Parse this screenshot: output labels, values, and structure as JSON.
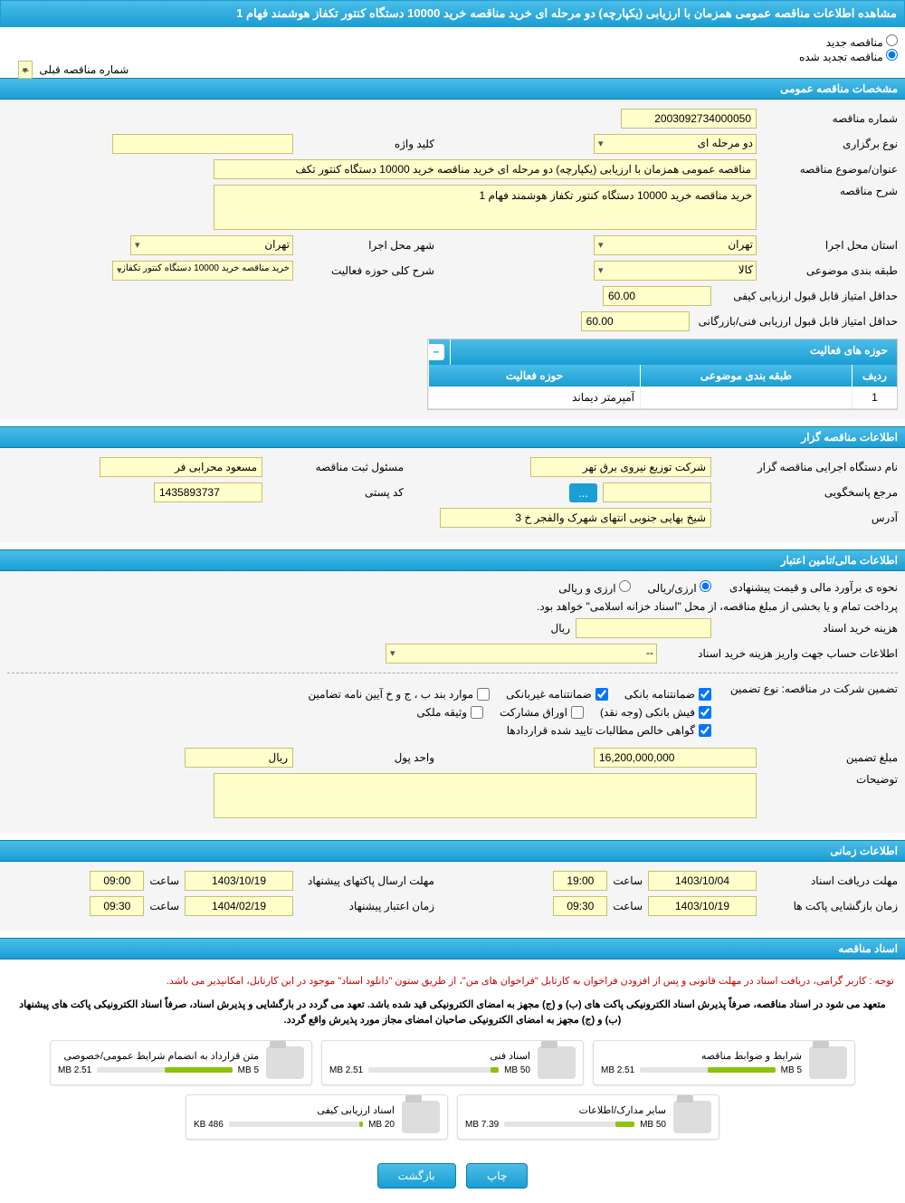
{
  "header": {
    "title": "مشاهده اطلاعات مناقصه عمومی همزمان با ارزیابی (یکپارچه) دو مرحله ای خرید مناقصه خرید 10000 دستگاه کنتور تکفاز هوشمند فهام 1"
  },
  "radios": {
    "new": "مناقصه جدید",
    "renewed": "مناقصه تجدید شده"
  },
  "prev_number": {
    "label": "شماره مناقصه قبلی",
    "value": "--"
  },
  "sections": {
    "general": "مشخصات مناقصه عمومی",
    "agent": "اطلاعات مناقصه گزار",
    "finance": "اطلاعات مالی/تامین اعتبار",
    "time": "اطلاعات زمانی",
    "docs": "اسناد مناقصه"
  },
  "general": {
    "number_label": "شماره مناقصه",
    "number": "2003092734000050",
    "type_label": "نوع برگزاری",
    "type": "دو مرحله ای",
    "keyword_label": "کلید واژه",
    "keyword": "",
    "subject_label": "عنوان/موضوع مناقصه",
    "subject": "مناقصه عمومی همزمان با ارزیابی (یکپارچه) دو مرحله ای خرید مناقصه خرید 10000 دستگاه کنتور تکف",
    "desc_label": "شرح مناقصه",
    "desc": "خرید مناقصه خرید 10000 دستگاه کنتور تکفاز هوشمند فهام 1",
    "province_label": "استان محل اجرا",
    "province": "تهران",
    "city_label": "شهر محل اجرا",
    "city": "تهران",
    "category_label": "طبقه بندی موضوعی",
    "category": "کالا",
    "activity_desc_label": "شرح کلی حوزه فعالیت",
    "activity_desc": "خرید مناقصه خرید 10000 دستگاه کنتور تکفاز",
    "min_quality_label": "حداقل امتیاز قابل قبول ارزیابی کیفی",
    "min_quality": "60.00",
    "min_tech_label": "حداقل امتیاز قابل قبول ارزیابی فنی/بازرگانی",
    "min_tech": "60.00"
  },
  "activity_table": {
    "title": "حوزه های فعالیت",
    "col1": "ردیف",
    "col2": "طبقه بندی موضوعی",
    "col3": "حوزه فعالیت",
    "row1_num": "1",
    "row1_cat": "",
    "row1_act": "آمپرمتر دیماند"
  },
  "agent": {
    "org_label": "نام دستگاه اجرایی مناقصه گزار",
    "org": "شرکت توزیع نیروی برق تهر",
    "responsible_label": "مسئول ثبت مناقصه",
    "responsible": "مسعود محرابی فر",
    "response_label": "مرجع پاسخگویی",
    "response": "",
    "postal_label": "کد پستی",
    "postal": "1435893737",
    "address_label": "آدرس",
    "address": "شیخ بهایی جنوبی انتهای شهرک والفجر خ 3"
  },
  "finance": {
    "est_label": "نحوه ی برآورد مالی و قیمت پیشنهادی",
    "opt1": "ارزی/ریالی",
    "opt2": "ارزی و ریالی",
    "note": "پرداخت تمام و یا بخشی از مبلغ مناقصه، از محل \"اسناد خزانه اسلامی\" خواهد بود.",
    "cost_label": "هزینه خرید اسناد",
    "cost_unit": "ریال",
    "account_label": "اطلاعات حساب جهت واریز هزینه خرید اسناد",
    "account": "--",
    "guarantee_intro": "تضمین شرکت در مناقصه:   نوع تضمین",
    "g1": "ضمانتنامه بانکی",
    "g2": "ضمانتنامه غیربانکی",
    "g3": "موارد بند ب ، ج و خ آیین نامه تضامین",
    "g4": "فیش بانکی (وجه نقد)",
    "g5": "اوراق مشارکت",
    "g6": "وثیقه ملکی",
    "g7": "گواهی خالص مطالبات تایید شده قراردادها",
    "amount_label": "مبلغ تضمین",
    "amount": "16,200,000,000",
    "unit_label": "واحد پول",
    "unit": "ریال",
    "remarks_label": "توضیحات"
  },
  "time": {
    "receive_label": "مهلت دریافت اسناد",
    "receive_date": "1403/10/04",
    "receive_time_label": "ساعت",
    "receive_time": "19:00",
    "send_label": "مهلت ارسال پاکتهای پیشنهاد",
    "send_date": "1403/10/19",
    "send_time": "09:00",
    "open_label": "زمان بازگشایی پاکت ها",
    "open_date": "1403/10/19",
    "open_time": "09:30",
    "valid_label": "زمان اعتبار پیشنهاد",
    "valid_date": "1404/02/19",
    "valid_time": "09:30"
  },
  "docs": {
    "note1": "توجه : کاربر گرامی، دریافت اسناد در مهلت قانونی و پس از افزودن فراخوان به کارتابل \"فراخوان های من\"، از طریق ستون \"دانلود اسناد\" موجود در این کارتابل، امکانپذیر می باشد.",
    "note2": "متعهد می شود در اسناد مناقصه، صرفاً پذیرش اسناد الکترونیکی پاکت های (ب) و (ج) مجهز به امضای الکترونیکی قید شده باشد. تعهد می گردد در بارگشایی و پذیرش اسناد، صرفاً اسناد الکترونیکی پاکت های پیشنهاد (ب) و (ج) مجهز به امضای الکترونیکی صاحبان امضای مجاز مورد پذیرش واقع گردد.",
    "files": [
      {
        "title": "شرایط و ضوابط مناقصه",
        "size": "2.51 MB",
        "max": "5 MB",
        "fill": 50
      },
      {
        "title": "اسناد فنی",
        "size": "2.51 MB",
        "max": "50 MB",
        "fill": 6
      },
      {
        "title": "متن قرارداد به انضمام شرایط عمومی/خصوصی",
        "size": "2.51 MB",
        "max": "5 MB",
        "fill": 50
      },
      {
        "title": "سایر مدارک/اطلاعات",
        "size": "7.39 MB",
        "max": "50 MB",
        "fill": 15
      },
      {
        "title": "اسناد ارزیابی کیفی",
        "size": "486 KB",
        "max": "20 MB",
        "fill": 3
      }
    ]
  },
  "buttons": {
    "print": "چاپ",
    "back": "بازگشت"
  }
}
